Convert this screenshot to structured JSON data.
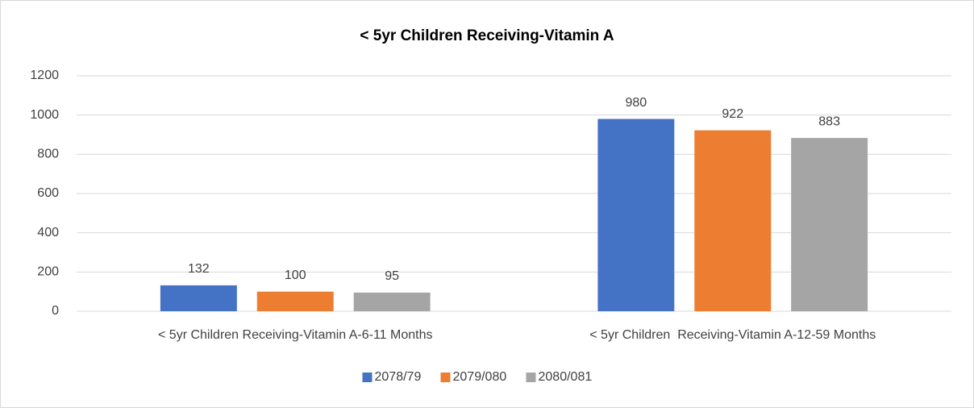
{
  "chart_data": {
    "type": "bar",
    "title": "< 5yr Children Receiving-Vitamin A",
    "categories": [
      "< 5yr Children Receiving-Vitamin A-6-11 Months",
      "< 5yr Children  Receiving-Vitamin A-12-59 Months"
    ],
    "series": [
      {
        "name": "2078/79",
        "color": "#4472c4",
        "values": [
          132,
          980
        ]
      },
      {
        "name": "2079/080",
        "color": "#ed7d31",
        "values": [
          100,
          922
        ]
      },
      {
        "name": "2080/081",
        "color": "#a5a5a5",
        "values": [
          95,
          883
        ]
      }
    ],
    "ylim": [
      0,
      1200
    ],
    "yticks": [
      0,
      200,
      400,
      600,
      800,
      1000,
      1200
    ],
    "grid": true,
    "legend": "bottom"
  }
}
